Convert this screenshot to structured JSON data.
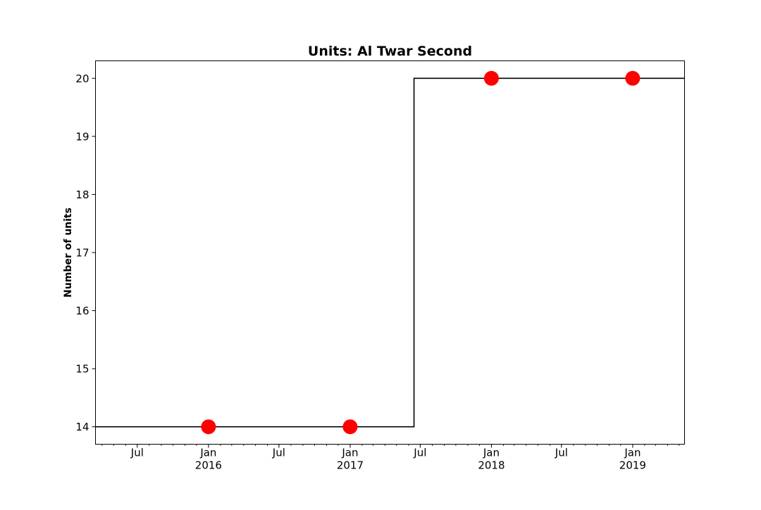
{
  "chart_data": {
    "type": "line",
    "title": "Units: Al Twar Second",
    "xlabel": "",
    "ylabel": "Number of units",
    "grid": false,
    "legend": null,
    "x_axis": {
      "kind": "date",
      "range": [
        "2015-03-15",
        "2019-05-15"
      ],
      "major_ticks": [
        {
          "date": "2015-07-01",
          "label": "Jul",
          "sublabel": ""
        },
        {
          "date": "2016-01-01",
          "label": "Jan",
          "sublabel": "2016"
        },
        {
          "date": "2016-07-01",
          "label": "Jul",
          "sublabel": ""
        },
        {
          "date": "2017-01-01",
          "label": "Jan",
          "sublabel": "2017"
        },
        {
          "date": "2017-07-01",
          "label": "Jul",
          "sublabel": ""
        },
        {
          "date": "2018-01-01",
          "label": "Jan",
          "sublabel": "2018"
        },
        {
          "date": "2018-07-01",
          "label": "Jul",
          "sublabel": ""
        },
        {
          "date": "2019-01-01",
          "label": "Jan",
          "sublabel": "2019"
        }
      ],
      "minor_ticks": "monthly"
    },
    "y_axis": {
      "range": [
        13.7,
        20.3
      ],
      "ticks": [
        14,
        15,
        16,
        17,
        18,
        19,
        20
      ]
    },
    "series": [
      {
        "kind": "step",
        "color": "#000000",
        "points": [
          {
            "x": "2015-03-15",
            "y": 14
          },
          {
            "x": "2017-06-15",
            "y": 14
          },
          {
            "x": "2017-06-15",
            "y": 20
          },
          {
            "x": "2019-05-15",
            "y": 20
          }
        ]
      },
      {
        "kind": "scatter",
        "color": "#ff0000",
        "points": [
          {
            "x": "2016-01-01",
            "y": 14
          },
          {
            "x": "2017-01-01",
            "y": 14
          },
          {
            "x": "2018-01-01",
            "y": 20
          },
          {
            "x": "2019-01-01",
            "y": 20
          }
        ]
      }
    ]
  }
}
